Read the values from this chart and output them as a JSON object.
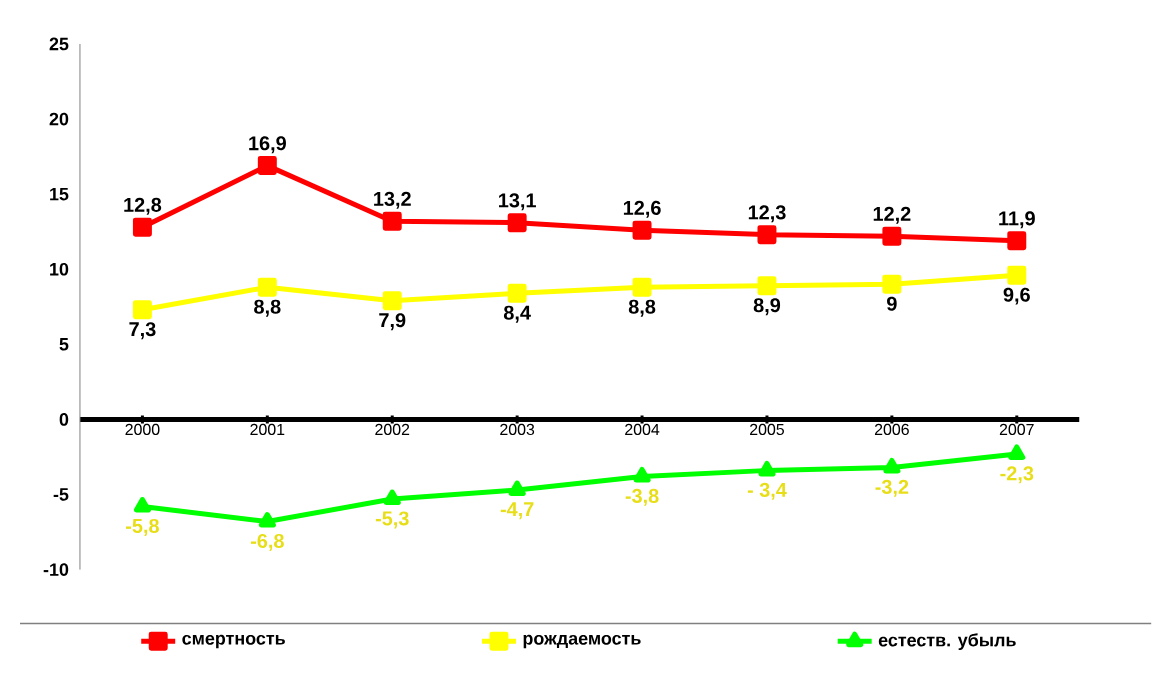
{
  "chart_data": {
    "type": "line",
    "categories": [
      "2000",
      "2001",
      "2002",
      "2003",
      "2004",
      "2005",
      "2006",
      "2007"
    ],
    "ylim": [
      -10,
      25
    ],
    "yticks": [
      -10,
      -5,
      0,
      5,
      10,
      15,
      20,
      25
    ],
    "grid": false,
    "legend": "bottom",
    "series": [
      {
        "name": "смертность",
        "color": "#ff0000",
        "marker": "square",
        "values": [
          12.8,
          16.9,
          13.2,
          13.1,
          12.6,
          12.3,
          12.2,
          11.9
        ],
        "value_labels": [
          "12,8",
          "16,9",
          "13,2",
          "13,1",
          "12,6",
          "12,3",
          "12,2",
          "11,9"
        ]
      },
      {
        "name": "рождаемость",
        "color": "#ffff00",
        "marker": "square",
        "values": [
          7.3,
          8.8,
          7.9,
          8.4,
          8.8,
          8.9,
          9,
          9.6
        ],
        "value_labels": [
          "7,3",
          "8,8",
          "7,9",
          "8,4",
          "8,8",
          "8,9",
          "9",
          "9,6"
        ]
      },
      {
        "name": "естеств. убыль",
        "color": "#00ff00",
        "marker": "triangle",
        "values": [
          -5.8,
          -6.8,
          -5.3,
          -4.7,
          -3.8,
          -3.4,
          -3.2,
          -2.3
        ],
        "value_labels": [
          "-5,8",
          "-6,8",
          "-5,3",
          "-4,7",
          "-3,8",
          "- 3,4",
          "-3,2",
          "-2,3"
        ]
      }
    ]
  }
}
